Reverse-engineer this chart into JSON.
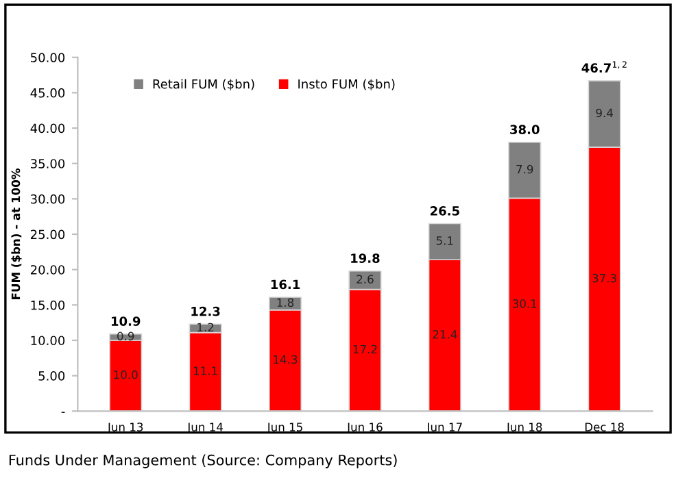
{
  "chart_data": {
    "type": "bar",
    "stacked": true,
    "ylabel": "FUM ($bn) - at 100%",
    "categories": [
      "Jun 13",
      "Jun 14",
      "Jun 15",
      "Jun 16",
      "Jun 17",
      "Jun 18",
      "Dec 18"
    ],
    "series": [
      {
        "name": "Insto FUM ($bn)",
        "color": "#ff0000",
        "values": [
          10.0,
          11.1,
          14.3,
          17.2,
          21.4,
          30.1,
          37.3
        ],
        "value_labels": [
          "10.0",
          "11.1",
          "14.3",
          "17.2",
          "21.4",
          "30.1",
          "37.3"
        ]
      },
      {
        "name": "Retail FUM ($bn)",
        "color": "#808080",
        "values": [
          0.9,
          1.2,
          1.8,
          2.6,
          5.1,
          7.9,
          9.4
        ],
        "value_labels": [
          "0.9",
          "1.2",
          "1.8",
          "2.6",
          "5.1",
          "7.9",
          "9.4"
        ]
      }
    ],
    "totals": [
      "10.9",
      "12.3",
      "16.1",
      "19.8",
      "26.5",
      "38.0",
      "46.7$^{1,2}$"
    ],
    "ylim": [
      0,
      50
    ],
    "yticks": [
      {
        "value": 0,
        "label": "-"
      },
      {
        "value": 5,
        "label": "5.00"
      },
      {
        "value": 10,
        "label": "10.00"
      },
      {
        "value": 15,
        "label": "15.00"
      },
      {
        "value": 20,
        "label": "20.00"
      },
      {
        "value": 25,
        "label": "25.00"
      },
      {
        "value": 30,
        "label": "30.00"
      },
      {
        "value": 35,
        "label": "35.00"
      },
      {
        "value": 40,
        "label": "40.00"
      },
      {
        "value": 45,
        "label": "45.00"
      },
      {
        "value": 50,
        "label": "50.00"
      }
    ],
    "grid": false,
    "legend": "top left",
    "annotations": [
      "Funds Under Management (Source: Company Reports)"
    ]
  }
}
